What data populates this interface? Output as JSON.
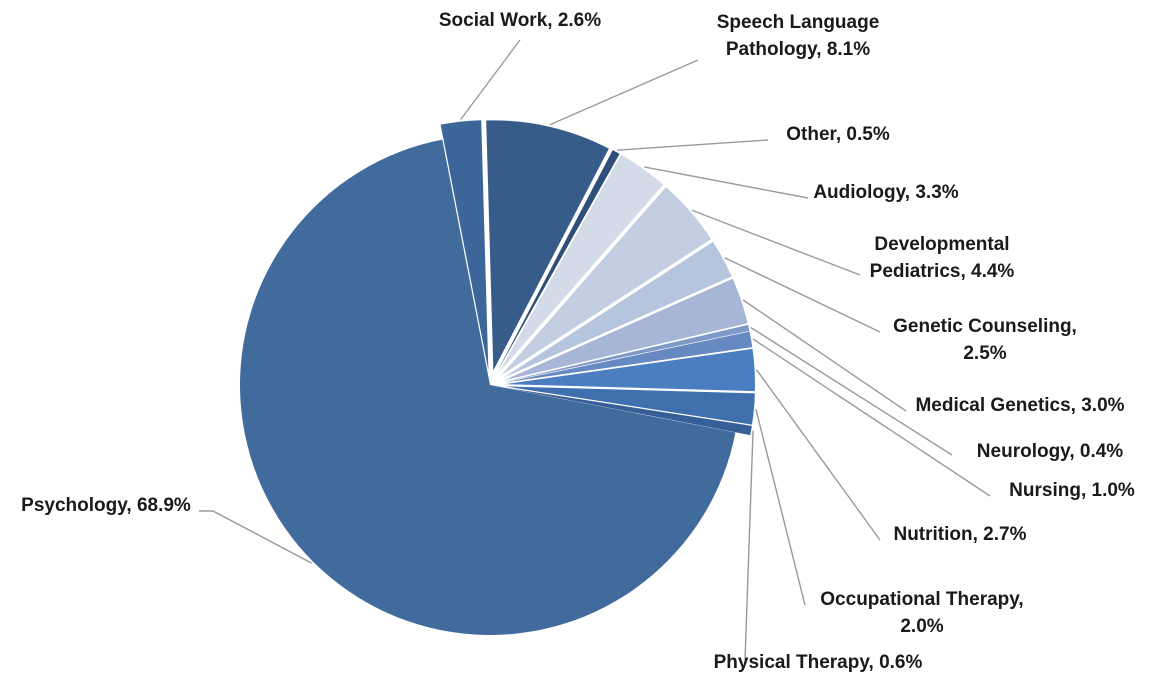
{
  "chart_data": {
    "type": "pie",
    "title": "",
    "slices": [
      {
        "label": "Social Work",
        "value": 2.6,
        "display": "Social Work, 2.6%",
        "color": "#3c6699"
      },
      {
        "label": "Speech Language Pathology",
        "value": 8.1,
        "display": [
          "Speech Language",
          "Pathology, 8.1%"
        ],
        "color": "#385c89"
      },
      {
        "label": "Other",
        "value": 0.5,
        "display": "Other, 0.5%",
        "color": "#2f4f7a"
      },
      {
        "label": "Audiology",
        "value": 3.3,
        "display": "Audiology, 3.3%",
        "color": "#d3dbe9"
      },
      {
        "label": "Developmental Pediatrics",
        "value": 4.4,
        "display": [
          "Developmental",
          "Pediatrics, 4.4%"
        ],
        "color": "#c3cee2"
      },
      {
        "label": "Genetic Counseling",
        "value": 2.5,
        "display": [
          "Genetic Counseling,",
          "2.5%"
        ],
        "color": "#b6c5de"
      },
      {
        "label": "Medical Genetics",
        "value": 3.0,
        "display": "Medical Genetics, 3.0%",
        "color": "#a7b6d6"
      },
      {
        "label": "Neurology",
        "value": 0.4,
        "display": "Neurology, 0.4%",
        "color": "#7e98c7"
      },
      {
        "label": "Nursing",
        "value": 1.0,
        "display": "Nursing, 1.0%",
        "color": "#6689c2"
      },
      {
        "label": "Nutrition",
        "value": 2.7,
        "display": "Nutrition, 2.7%",
        "color": "#4a7ec0"
      },
      {
        "label": "Occupational Therapy",
        "value": 2.0,
        "display": [
          "Occupational Therapy,",
          "2.0%"
        ],
        "color": "#3f6fad"
      },
      {
        "label": "Physical Therapy",
        "value": 0.6,
        "display": "Physical Therapy, 0.6%",
        "color": "#355f96"
      },
      {
        "label": "Psychology",
        "value": 68.9,
        "display": "Psychology, 68.9%",
        "color": "#416b9d"
      }
    ]
  }
}
